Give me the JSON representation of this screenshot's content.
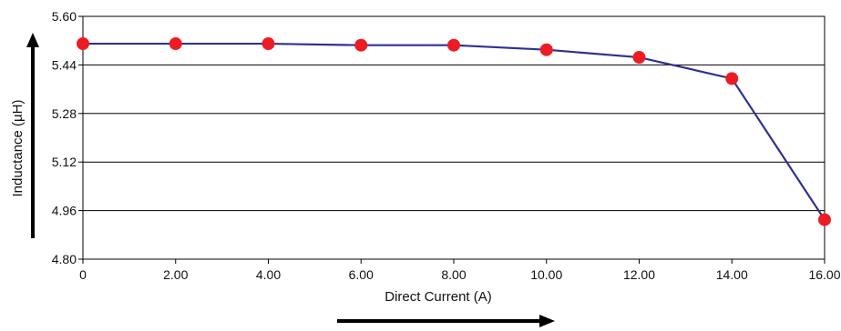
{
  "chart_data": {
    "type": "line",
    "xlabel": "Direct Current (A)",
    "ylabel": "Inductance (µH)",
    "x": [
      0,
      2,
      4,
      6,
      8,
      10,
      12,
      14,
      16
    ],
    "x_tick_labels": [
      "0",
      "2.00",
      "4.00",
      "6.00",
      "8.00",
      "10.00",
      "12.00",
      "14.00",
      "16.00"
    ],
    "y_ticks": [
      4.8,
      4.96,
      5.12,
      5.28,
      5.44,
      5.6
    ],
    "y_tick_labels": [
      "4.80",
      "4.96",
      "5.12",
      "5.28",
      "5.44",
      "5.60"
    ],
    "xlim": [
      0,
      16
    ],
    "ylim": [
      4.8,
      5.6
    ],
    "grid": "horizontal",
    "series": [
      {
        "values": [
          5.51,
          5.51,
          5.51,
          5.505,
          5.505,
          5.49,
          5.465,
          5.395,
          4.93
        ],
        "line_color": "#2e3192",
        "marker_color": "#ed1c24"
      }
    ]
  }
}
